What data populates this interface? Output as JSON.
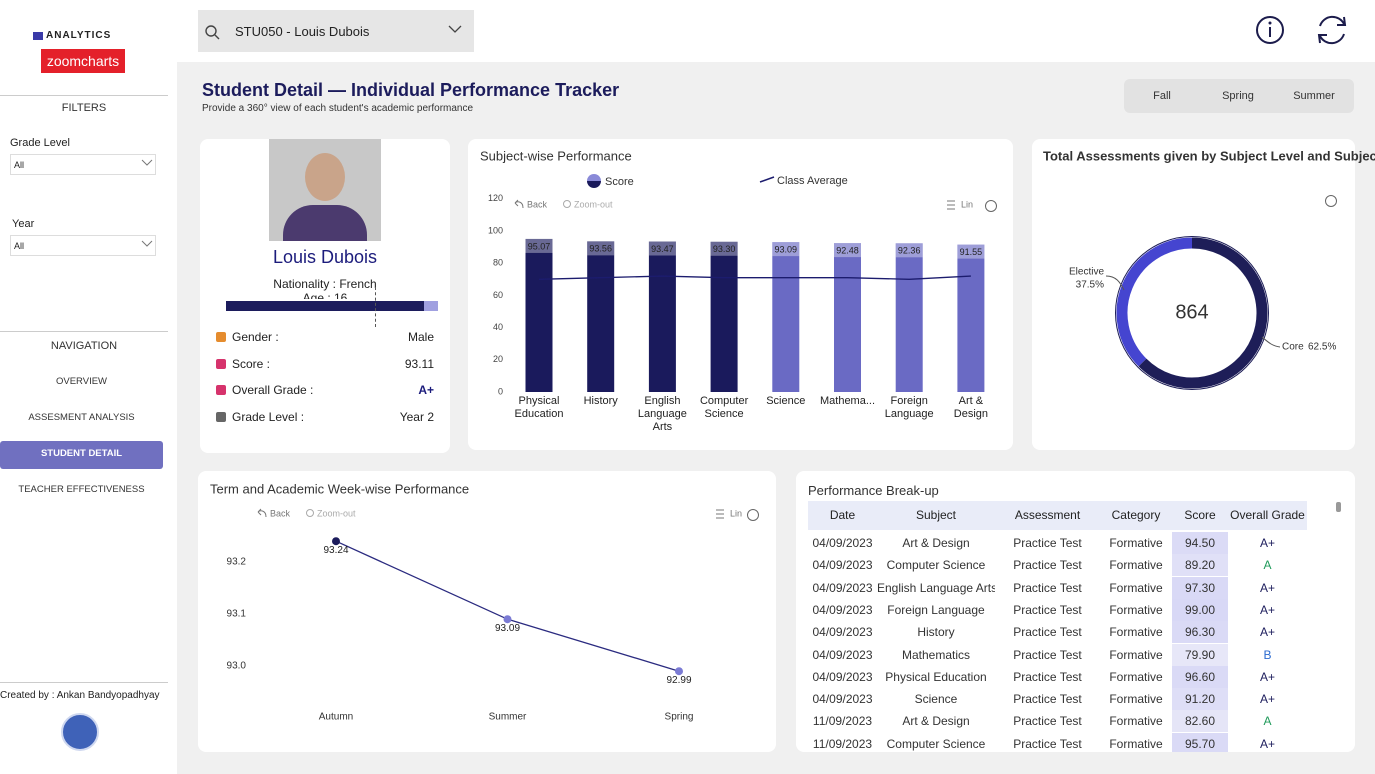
{
  "sidebar": {
    "brand": "ANALYTICS",
    "logo": "zoomcharts",
    "filters_title": "FILTERS",
    "filters": [
      {
        "label": "Grade Level",
        "value": "All"
      },
      {
        "label": "Year",
        "value": "All"
      }
    ],
    "navigation_title": "NAVIGATION",
    "navigation": [
      "OVERVIEW",
      "ASSESMENT ANALYSIS",
      "STUDENT DETAIL",
      "TEACHER EFFECTIVENESS"
    ],
    "active": 2,
    "created_by": "Created by : Ankan Bandyopadhyay"
  },
  "search": "STU050 - Louis Dubois",
  "header": {
    "title": "Student Detail — Individual Performance Tracker",
    "subtitle": "Provide a 360° view of each student's academic performance",
    "terms": [
      "Fall",
      "Spring",
      "Summer"
    ]
  },
  "profile": {
    "name": "Louis Dubois",
    "nationality": "Nationality : French",
    "age": "Age : 16",
    "fields": [
      {
        "label": "Gender :",
        "value": "Male"
      },
      {
        "label": "Score :",
        "value": "93.11"
      },
      {
        "label": "Overall Grade :",
        "value": "A+"
      },
      {
        "label": "Grade Level :",
        "value": "Year 2"
      }
    ]
  },
  "chart_data": [
    {
      "type": "bar",
      "title": "Subject-wise Performance",
      "toolbar": [
        "Back",
        "Zoom-out",
        "Lin"
      ],
      "categories": [
        "Physical Education",
        "History",
        "English Language Arts",
        "Computer Science",
        "Science",
        "Mathema...",
        "Foreign Language",
        "Art & Design"
      ],
      "series": [
        {
          "name": "Score",
          "type": "bar",
          "colors": [
            "#1a1a5c",
            "#1a1a5c",
            "#1a1a5c",
            "#1a1a5c",
            "#6a6ac4",
            "#6a6ac4",
            "#6a6ac4",
            "#6a6ac4"
          ],
          "values": [
            95.07,
            93.56,
            93.47,
            93.3,
            93.09,
            92.48,
            92.36,
            91.55
          ],
          "value_labels": [
            "95.07",
            "93.56",
            "93.47",
            "93.30",
            "93.09",
            "92.48",
            "92.36",
            "91.55"
          ]
        },
        {
          "name": "Class Average",
          "type": "line",
          "color": "#1c1c6e",
          "values": [
            70,
            71,
            72,
            71,
            71,
            71,
            70,
            72
          ]
        }
      ],
      "ylim": [
        0,
        120
      ],
      "yticks": [
        0,
        20,
        40,
        60,
        80,
        100,
        120
      ]
    },
    {
      "type": "pie",
      "title": "Total Assessments given by Subject Level and Subject",
      "total": 864,
      "categories": [
        "Elective",
        "Core"
      ],
      "values": [
        37.5,
        62.5
      ],
      "value_labels": [
        "37.5%",
        "62.5%"
      ],
      "colors": [
        "#4545d0",
        "#1e1e58"
      ],
      "donut": true
    },
    {
      "type": "line",
      "title": "Term and Academic Week-wise Performance",
      "toolbar": [
        "Back",
        "Zoom-out",
        "Lin"
      ],
      "categories": [
        "Autumn",
        "Summer",
        "Spring"
      ],
      "values": [
        93.24,
        93.09,
        92.99
      ],
      "color": "#2b2b80",
      "point_colors": [
        "#1c1c5c",
        "#7b7bd4",
        "#7b7bd4"
      ],
      "ylim": [
        92.9,
        93.3
      ],
      "yticks": [
        {
          "value": 93,
          "label": "93.0"
        },
        93.1,
        93.2
      ]
    }
  ],
  "table": {
    "title": "Performance Break-up",
    "columns": [
      "Date",
      "Subject",
      "Assessment",
      "Category",
      "Score",
      "Overall Grade"
    ],
    "rows": [
      [
        "04/09/2023",
        "Art & Design",
        "Practice Test",
        "Formative",
        "94.50",
        "A+"
      ],
      [
        "04/09/2023",
        "Computer Science",
        "Practice Test",
        "Formative",
        "89.20",
        "A"
      ],
      [
        "04/09/2023",
        "English Language Arts",
        "Practice Test",
        "Formative",
        "97.30",
        "A+"
      ],
      [
        "04/09/2023",
        "Foreign Language",
        "Practice Test",
        "Formative",
        "99.00",
        "A+"
      ],
      [
        "04/09/2023",
        "History",
        "Practice Test",
        "Formative",
        "96.30",
        "A+"
      ],
      [
        "04/09/2023",
        "Mathematics",
        "Practice Test",
        "Formative",
        "79.90",
        "B"
      ],
      [
        "04/09/2023",
        "Physical Education",
        "Practice Test",
        "Formative",
        "96.60",
        "A+"
      ],
      [
        "04/09/2023",
        "Science",
        "Practice Test",
        "Formative",
        "91.20",
        "A+"
      ],
      [
        "11/09/2023",
        "Art & Design",
        "Practice Test",
        "Formative",
        "82.60",
        "A"
      ],
      [
        "11/09/2023",
        "Computer Science",
        "Practice Test",
        "Formative",
        "95.70",
        "A+"
      ]
    ]
  }
}
